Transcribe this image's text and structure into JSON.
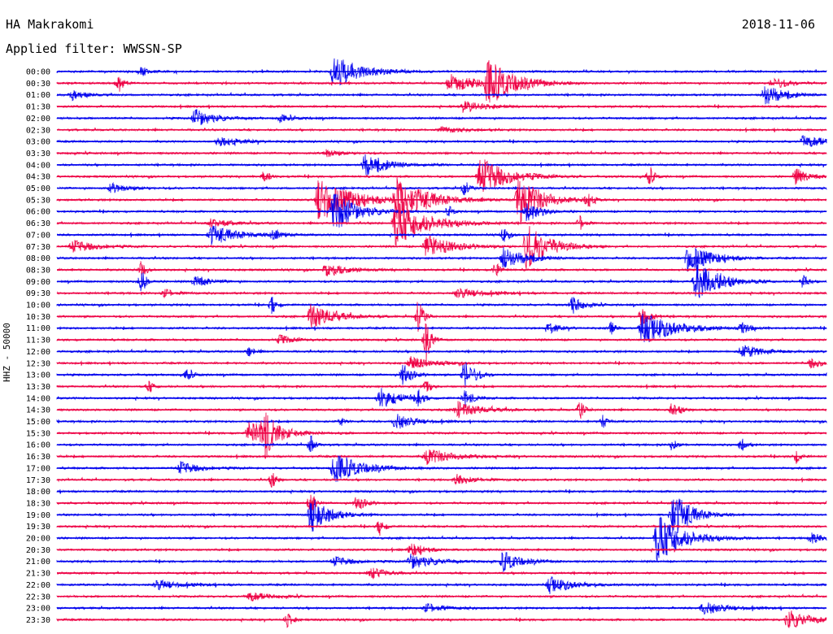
{
  "header": {
    "station": "HA Makrakomi",
    "date": "2018-11-06",
    "filter": "Applied filter: WWSSN-SP"
  },
  "chart_data": {
    "type": "line",
    "title": "HA Makrakomi",
    "subtitle": "Applied filter: WWSSN-SP",
    "ylabel": "HHZ - 50000",
    "xlabel": "",
    "grid": false,
    "colors": [
      "#0000ee",
      "#ee0044"
    ],
    "tick_labels": [
      "00:00",
      "00:30",
      "01:00",
      "01:30",
      "02:00",
      "02:30",
      "03:00",
      "03:30",
      "04:00",
      "04:30",
      "05:00",
      "05:30",
      "06:00",
      "06:30",
      "07:00",
      "07:30",
      "08:00",
      "08:30",
      "09:00",
      "09:30",
      "10:00",
      "10:30",
      "11:00",
      "11:30",
      "12:00",
      "12:30",
      "13:00",
      "13:30",
      "14:00",
      "14:30",
      "15:00",
      "15:30",
      "16:00",
      "16:30",
      "17:00",
      "17:30",
      "18:00",
      "18:30",
      "19:00",
      "19:30",
      "20:00",
      "20:30",
      "21:00",
      "21:30",
      "22:00",
      "22:30",
      "23:00",
      "23:30"
    ],
    "events": [
      [
        0,
        0.36,
        20,
        0.06
      ],
      [
        0,
        0.11,
        6,
        0.02
      ],
      [
        1,
        0.51,
        12,
        0.06
      ],
      [
        1,
        0.56,
        26,
        0.06
      ],
      [
        1,
        0.08,
        12,
        0.01
      ],
      [
        1,
        0.93,
        8,
        0.03
      ],
      [
        2,
        0.92,
        14,
        0.04
      ],
      [
        2,
        0.02,
        6,
        0.03
      ],
      [
        3,
        0.53,
        8,
        0.04
      ],
      [
        4,
        0.18,
        12,
        0.04
      ],
      [
        4,
        0.29,
        4,
        0.03
      ],
      [
        5,
        0.5,
        4,
        0.05
      ],
      [
        6,
        0.21,
        6,
        0.05
      ],
      [
        6,
        0.97,
        8,
        0.05
      ],
      [
        7,
        0.35,
        5,
        0.03
      ],
      [
        8,
        0.4,
        14,
        0.05
      ],
      [
        9,
        0.55,
        24,
        0.06
      ],
      [
        9,
        0.27,
        10,
        0.01
      ],
      [
        9,
        0.96,
        10,
        0.03
      ],
      [
        9,
        0.77,
        12,
        0.01
      ],
      [
        10,
        0.07,
        6,
        0.04
      ],
      [
        10,
        0.53,
        10,
        0.01
      ],
      [
        11,
        0.34,
        28,
        0.07
      ],
      [
        11,
        0.44,
        26,
        0.07
      ],
      [
        11,
        0.6,
        30,
        0.05
      ],
      [
        11,
        0.69,
        10,
        0.01
      ],
      [
        12,
        0.36,
        26,
        0.05
      ],
      [
        12,
        0.51,
        6,
        0.01
      ],
      [
        12,
        0.61,
        14,
        0.03
      ],
      [
        13,
        0.44,
        28,
        0.07
      ],
      [
        13,
        0.68,
        10,
        0.01
      ],
      [
        13,
        0.2,
        6,
        0.04
      ],
      [
        14,
        0.2,
        12,
        0.06
      ],
      [
        14,
        0.58,
        10,
        0.01
      ],
      [
        14,
        0.28,
        6,
        0.02
      ],
      [
        15,
        0.61,
        28,
        0.05
      ],
      [
        15,
        0.48,
        14,
        0.06
      ],
      [
        15,
        0.02,
        8,
        0.05
      ],
      [
        16,
        0.58,
        14,
        0.05
      ],
      [
        16,
        0.82,
        18,
        0.05
      ],
      [
        17,
        0.35,
        8,
        0.05
      ],
      [
        17,
        0.57,
        10,
        0.01
      ],
      [
        17,
        0.11,
        12,
        0.01
      ],
      [
        18,
        0.83,
        26,
        0.05
      ],
      [
        18,
        0.11,
        16,
        0.01
      ],
      [
        18,
        0.18,
        8,
        0.03
      ],
      [
        18,
        0.97,
        10,
        0.01
      ],
      [
        19,
        0.14,
        6,
        0.02
      ],
      [
        19,
        0.52,
        6,
        0.06
      ],
      [
        20,
        0.28,
        12,
        0.01
      ],
      [
        20,
        0.67,
        12,
        0.02
      ],
      [
        21,
        0.33,
        16,
        0.05
      ],
      [
        21,
        0.47,
        24,
        0.01
      ],
      [
        21,
        0.76,
        12,
        0.02
      ],
      [
        22,
        0.76,
        20,
        0.07
      ],
      [
        22,
        0.64,
        8,
        0.02
      ],
      [
        22,
        0.72,
        8,
        0.01
      ],
      [
        22,
        0.89,
        6,
        0.02
      ],
      [
        23,
        0.29,
        6,
        0.03
      ],
      [
        23,
        0.48,
        26,
        0.01
      ],
      [
        24,
        0.25,
        6,
        0.01
      ],
      [
        24,
        0.89,
        8,
        0.05
      ],
      [
        25,
        0.46,
        8,
        0.05
      ],
      [
        25,
        0.98,
        6,
        0.03
      ],
      [
        26,
        0.53,
        22,
        0.02
      ],
      [
        26,
        0.45,
        14,
        0.02
      ],
      [
        26,
        0.17,
        8,
        0.01
      ],
      [
        27,
        0.12,
        8,
        0.01
      ],
      [
        27,
        0.48,
        10,
        0.01
      ],
      [
        28,
        0.42,
        14,
        0.04
      ],
      [
        28,
        0.47,
        10,
        0.01
      ],
      [
        28,
        0.53,
        10,
        0.02
      ],
      [
        29,
        0.52,
        10,
        0.05
      ],
      [
        29,
        0.68,
        12,
        0.01
      ],
      [
        29,
        0.8,
        8,
        0.02
      ],
      [
        30,
        0.44,
        10,
        0.04
      ],
      [
        30,
        0.71,
        8,
        0.01
      ],
      [
        30,
        0.37,
        4,
        0.01
      ],
      [
        31,
        0.25,
        16,
        0.06
      ],
      [
        31,
        0.27,
        26,
        0.02
      ],
      [
        32,
        0.33,
        12,
        0.01
      ],
      [
        32,
        0.89,
        8,
        0.01
      ],
      [
        32,
        0.8,
        8,
        0.01
      ],
      [
        33,
        0.48,
        10,
        0.06
      ],
      [
        33,
        0.96,
        10,
        0.01
      ],
      [
        34,
        0.36,
        18,
        0.06
      ],
      [
        34,
        0.16,
        8,
        0.04
      ],
      [
        35,
        0.28,
        10,
        0.01
      ],
      [
        35,
        0.52,
        6,
        0.04
      ],
      [
        37,
        0.33,
        16,
        0.01
      ],
      [
        37,
        0.39,
        10,
        0.02
      ],
      [
        38,
        0.33,
        22,
        0.04
      ],
      [
        38,
        0.8,
        30,
        0.04
      ],
      [
        39,
        0.42,
        12,
        0.01
      ],
      [
        40,
        0.78,
        30,
        0.06
      ],
      [
        40,
        0.98,
        6,
        0.03
      ],
      [
        41,
        0.46,
        8,
        0.03
      ],
      [
        42,
        0.46,
        10,
        0.05
      ],
      [
        42,
        0.58,
        12,
        0.04
      ],
      [
        42,
        0.36,
        6,
        0.04
      ],
      [
        43,
        0.41,
        8,
        0.03
      ],
      [
        44,
        0.64,
        10,
        0.05
      ],
      [
        44,
        0.13,
        6,
        0.05
      ],
      [
        45,
        0.25,
        6,
        0.04
      ],
      [
        46,
        0.84,
        8,
        0.05
      ],
      [
        46,
        0.48,
        6,
        0.04
      ],
      [
        47,
        0.95,
        12,
        0.05
      ],
      [
        47,
        0.3,
        10,
        0.01
      ]
    ]
  }
}
